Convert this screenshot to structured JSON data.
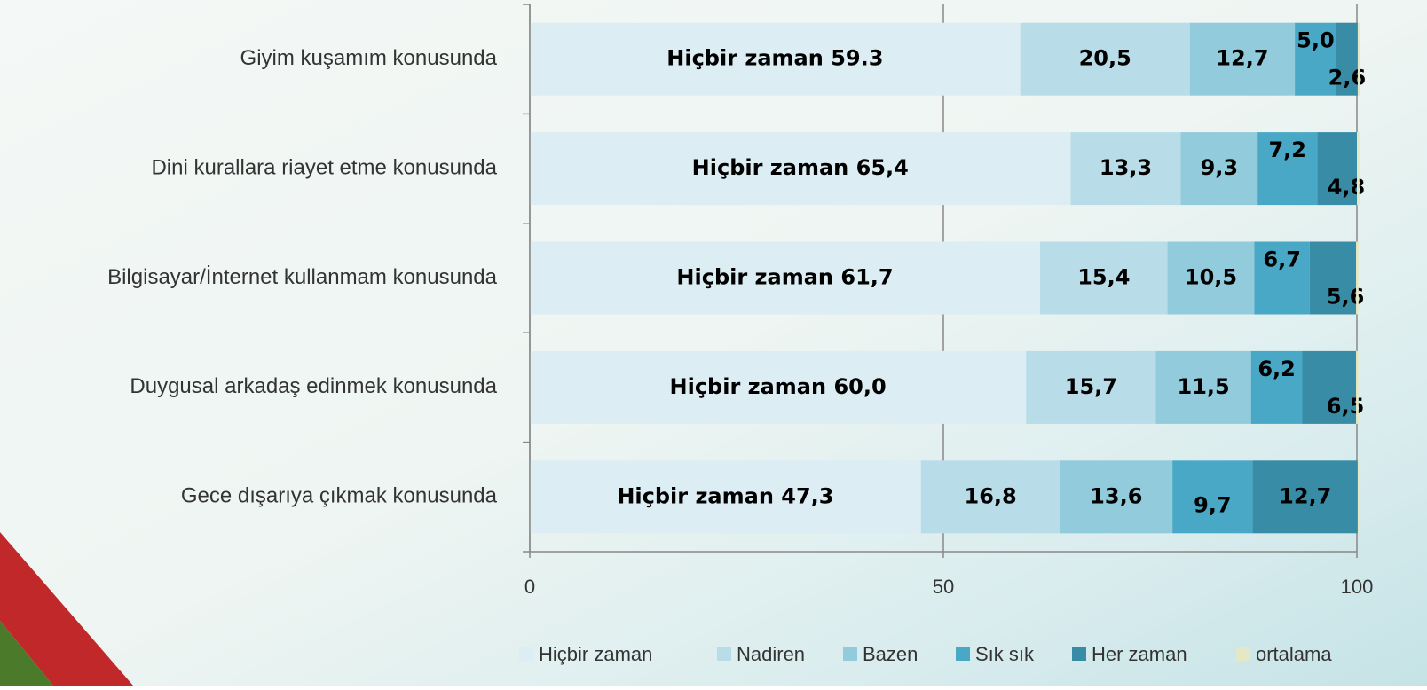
{
  "chart_data": {
    "type": "stacked-bar",
    "orientation": "horizontal",
    "categories": [
      "Giyim kuşamım konusunda",
      "Dini kurallara riayet etme konusunda",
      "Bilgisayar/İnternet kullanmam konusunda",
      "Duygusal arkadaş edinmek konusunda",
      "Gece dışarıya çıkmak konusunda"
    ],
    "series": [
      {
        "name": "Hiçbir zaman",
        "color": "#dcedf3",
        "values": [
          59.3,
          65.4,
          61.7,
          60.0,
          47.3
        ],
        "value_labels": [
          "Hiçbir zaman 59.3",
          "Hiçbir zaman 65,4",
          "Hiçbir zaman 61,7",
          "Hiçbir zaman 60,0",
          "Hiçbir zaman 47,3"
        ]
      },
      {
        "name": "Nadiren",
        "color": "#b8dde8",
        "values": [
          20.5,
          13.3,
          15.4,
          15.7,
          16.8
        ],
        "value_labels": [
          "20,5",
          "13,3",
          "15,4",
          "15,7",
          "16,8"
        ]
      },
      {
        "name": "Bazen",
        "color": "#92cbdc",
        "values": [
          12.7,
          9.3,
          10.5,
          11.5,
          13.6
        ],
        "value_labels": [
          "12,7",
          "9,3",
          "10,5",
          "11,5",
          "13,6"
        ]
      },
      {
        "name": "Sık sık",
        "color": "#48a8c5",
        "values": [
          5.0,
          7.2,
          6.7,
          6.2,
          9.7
        ],
        "value_labels": [
          "5,0",
          "7,2",
          "6,7",
          "6,2",
          "9,7"
        ]
      },
      {
        "name": "Her zaman",
        "color": "#388ca6",
        "values": [
          2.6,
          4.8,
          5.6,
          6.5,
          12.7
        ],
        "value_labels": [
          "2,6",
          "4,8",
          "5,6",
          "6,5",
          "12,7"
        ]
      },
      {
        "name": "ortalama",
        "color": "#e4e8c6",
        "values": [
          0.3,
          0.3,
          0.3,
          0.3,
          0.3
        ]
      }
    ],
    "xlim": [
      0,
      100
    ],
    "xticks": [
      0,
      50,
      100
    ],
    "grid": true,
    "legend": "bottom"
  }
}
